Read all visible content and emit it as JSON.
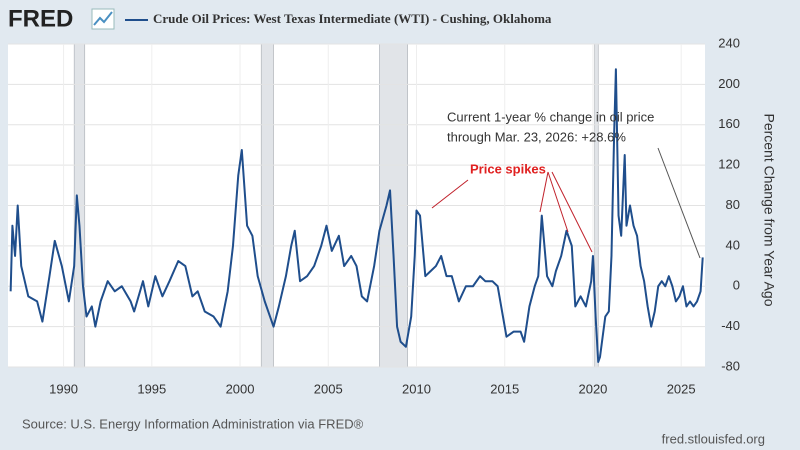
{
  "logo": "FRED",
  "chart_data": {
    "type": "line",
    "x": [
      1987.0,
      1987.1,
      1987.25,
      1987.4,
      1987.6,
      1988.0,
      1988.5,
      1988.8,
      1989.2,
      1989.5,
      1989.9,
      1990.3,
      1990.6,
      1990.75,
      1990.9,
      1991.1,
      1991.3,
      1991.6,
      1991.8,
      1992.1,
      1992.5,
      1992.9,
      1993.3,
      1993.8,
      1994.0,
      1994.5,
      1994.8,
      1995.2,
      1995.6,
      1996.0,
      1996.5,
      1996.9,
      1997.3,
      1997.6,
      1998.0,
      1998.5,
      1998.9,
      1999.3,
      1999.6,
      1999.9,
      2000.1,
      2000.4,
      2000.7,
      2001.0,
      2001.4,
      2001.7,
      2001.9,
      2002.2,
      2002.6,
      2002.9,
      2003.1,
      2003.4,
      2003.8,
      2004.2,
      2004.6,
      2004.9,
      2005.2,
      2005.6,
      2005.9,
      2006.3,
      2006.6,
      2006.9,
      2007.2,
      2007.6,
      2007.9,
      2008.3,
      2008.5,
      2008.7,
      2008.9,
      2009.1,
      2009.4,
      2009.7,
      2009.9,
      2010.0,
      2010.2,
      2010.5,
      2010.8,
      2011.1,
      2011.4,
      2011.7,
      2012.0,
      2012.4,
      2012.8,
      2013.2,
      2013.6,
      2013.9,
      2014.3,
      2014.6,
      2014.9,
      2015.1,
      2015.5,
      2015.9,
      2016.1,
      2016.4,
      2016.7,
      2016.9,
      2017.1,
      2017.4,
      2017.7,
      2017.9,
      2018.2,
      2018.5,
      2018.8,
      2019.0,
      2019.3,
      2019.6,
      2019.9,
      2020.0,
      2020.15,
      2020.3,
      2020.4,
      2020.7,
      2020.9,
      2021.05,
      2021.2,
      2021.3,
      2021.45,
      2021.6,
      2021.8,
      2021.9,
      2022.1,
      2022.3,
      2022.5,
      2022.7,
      2022.9,
      2023.1,
      2023.3,
      2023.5,
      2023.7,
      2023.9,
      2024.1,
      2024.3,
      2024.5,
      2024.7,
      2024.9,
      2025.1,
      2025.3,
      2025.5,
      2025.7,
      2025.9,
      2026.1,
      2026.22
    ],
    "series": [
      {
        "name": "Crude Oil Prices: West Texas Intermediate (WTI) - Cushing, Oklahoma",
        "color": "#1f4e8c",
        "values": [
          -5,
          60,
          30,
          80,
          20,
          -10,
          -15,
          -35,
          10,
          45,
          20,
          -15,
          20,
          90,
          60,
          0,
          -30,
          -20,
          -40,
          -15,
          5,
          -5,
          0,
          -15,
          -25,
          5,
          -20,
          10,
          -10,
          5,
          25,
          20,
          -10,
          -5,
          -25,
          -30,
          -40,
          -5,
          40,
          110,
          135,
          60,
          50,
          10,
          -15,
          -30,
          -40,
          -20,
          10,
          40,
          55,
          5,
          10,
          20,
          40,
          60,
          35,
          50,
          20,
          30,
          20,
          -10,
          -15,
          20,
          55,
          80,
          95,
          30,
          -40,
          -55,
          -60,
          -30,
          30,
          75,
          70,
          10,
          15,
          20,
          30,
          10,
          10,
          -15,
          0,
          0,
          10,
          5,
          5,
          0,
          -30,
          -50,
          -45,
          -45,
          -55,
          -20,
          0,
          10,
          70,
          10,
          0,
          15,
          30,
          55,
          40,
          -20,
          -10,
          -20,
          5,
          30,
          -30,
          -75,
          -70,
          -30,
          -25,
          30,
          150,
          215,
          70,
          50,
          130,
          60,
          80,
          60,
          50,
          20,
          5,
          -20,
          -40,
          -25,
          0,
          5,
          0,
          10,
          0,
          -15,
          -10,
          0,
          -20,
          -15,
          -20,
          -15,
          -5,
          28.6
        ]
      }
    ],
    "recessions": [
      [
        1990.6,
        1991.2
      ],
      [
        2001.2,
        2001.9
      ],
      [
        2007.9,
        2009.5
      ],
      [
        2020.1,
        2020.3
      ]
    ],
    "xlim": [
      1986.85,
      2026.35
    ],
    "xticks": [
      1990,
      1995,
      2000,
      2005,
      2010,
      2015,
      2020,
      2025
    ],
    "ylim": [
      -80,
      240
    ],
    "yticks": [
      -80,
      -40,
      0,
      40,
      80,
      120,
      160,
      200,
      240
    ],
    "ylabel": "Percent Change from Year Ago",
    "annotations": [
      "Current 1-year % change in oil price",
      "through Mar. 23, 2026: +28.6%",
      "Price spikes"
    ],
    "source": "Source: U.S. Energy Information Administration via FRED®",
    "website": "fred.stlouisfed.org",
    "grid": true
  }
}
